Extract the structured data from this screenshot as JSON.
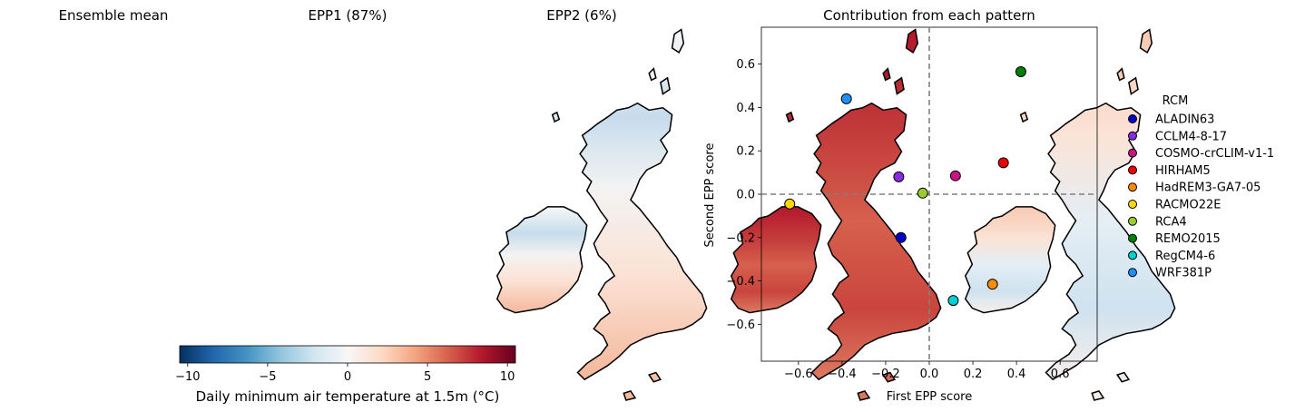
{
  "maps": {
    "panels": [
      {
        "title": "Ensemble mean"
      },
      {
        "title": "EPP1 (87%)"
      },
      {
        "title": "EPP2 (6%)"
      }
    ],
    "colorbar": {
      "label": "Daily minimum air temperature at 1.5m (°C)",
      "ticks": [
        -10,
        -5,
        0,
        5,
        10
      ],
      "tick_labels": [
        "−10",
        "−5",
        "0",
        "5",
        "10"
      ],
      "range": [
        -10.5,
        10.5
      ],
      "colormap": "RdBu_r"
    }
  },
  "chart_data": {
    "type": "scatter",
    "title": "Contribution from each pattern",
    "xlabel": "First EPP score",
    "ylabel": "Second EPP score",
    "xlim": [
      -0.77,
      0.77
    ],
    "ylim": [
      -0.77,
      0.77
    ],
    "xticks": [
      -0.6,
      -0.4,
      -0.2,
      0.0,
      0.2,
      0.4,
      0.6
    ],
    "yticks": [
      -0.6,
      -0.4,
      -0.2,
      0.0,
      0.2,
      0.4,
      0.6
    ],
    "xtick_labels": [
      "−0.6",
      "−0.4",
      "−0.2",
      "0.0",
      "0.2",
      "0.4",
      "0.6"
    ],
    "ytick_labels": [
      "−0.6",
      "−0.4",
      "−0.2",
      "0.0",
      "0.2",
      "0.4",
      "0.6"
    ],
    "reference_lines": {
      "x": 0.0,
      "y": 0.0,
      "style": "dashed",
      "color": "#808080"
    },
    "legend_title": "RCM",
    "legend_position": "right, outside",
    "points": [
      {
        "name": "ALADIN63",
        "x": -0.13,
        "y": -0.2,
        "color": "#0000cc"
      },
      {
        "name": "CCLM4-8-17",
        "x": -0.14,
        "y": 0.08,
        "color": "#8a2be2"
      },
      {
        "name": "COSMO-crCLIM-v1-1",
        "x": 0.12,
        "y": 0.085,
        "color": "#c71585"
      },
      {
        "name": "HIRHAM5",
        "x": 0.34,
        "y": 0.145,
        "color": "#ee0000"
      },
      {
        "name": "HadREM3-GA7-05",
        "x": 0.29,
        "y": -0.415,
        "color": "#ff8c00"
      },
      {
        "name": "RACMO22E",
        "x": -0.64,
        "y": -0.045,
        "color": "#ffd700"
      },
      {
        "name": "RCA4",
        "x": -0.03,
        "y": 0.005,
        "color": "#9acd32"
      },
      {
        "name": "REMO2015",
        "x": 0.42,
        "y": 0.565,
        "color": "#008000"
      },
      {
        "name": "RegCM4-6",
        "x": 0.11,
        "y": -0.49,
        "color": "#00ced1"
      },
      {
        "name": "WRF381P",
        "x": -0.38,
        "y": 0.44,
        "color": "#1e90ff"
      }
    ]
  }
}
